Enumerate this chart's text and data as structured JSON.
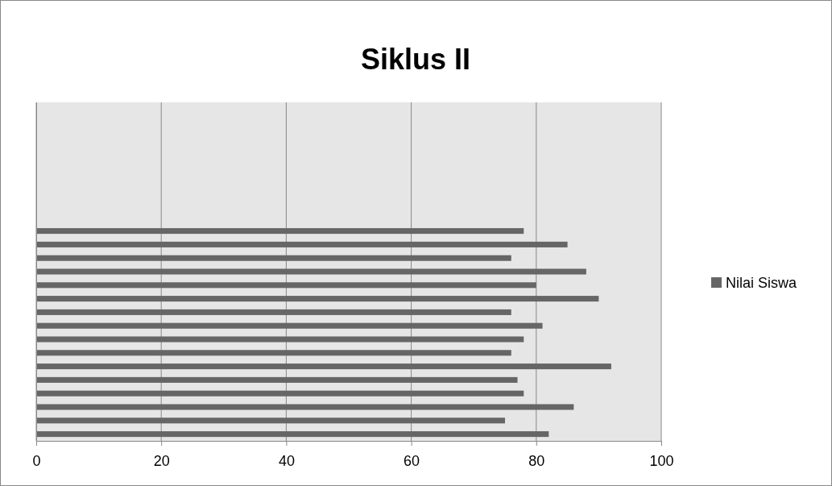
{
  "chart_data": {
    "type": "bar",
    "title": "Siklus II",
    "orientation": "horizontal",
    "categories": [
      null,
      null,
      null,
      null,
      null,
      null,
      null,
      null,
      null,
      null,
      null,
      null,
      null,
      null,
      null,
      null,
      null,
      null,
      null,
      null,
      null,
      null,
      null,
      null,
      null
    ],
    "series": [
      {
        "name": "Nilai Siswa",
        "color": "#666666",
        "values": [
          null,
          null,
          null,
          null,
          null,
          null,
          null,
          null,
          null,
          78,
          85,
          76,
          88,
          80,
          90,
          76,
          81,
          78,
          76,
          92,
          77,
          78,
          86,
          75,
          82
        ]
      }
    ],
    "xlim": [
      0,
      100
    ],
    "xticks": [
      0,
      20,
      40,
      60,
      80,
      100
    ],
    "grid": "x",
    "legend": "right"
  }
}
